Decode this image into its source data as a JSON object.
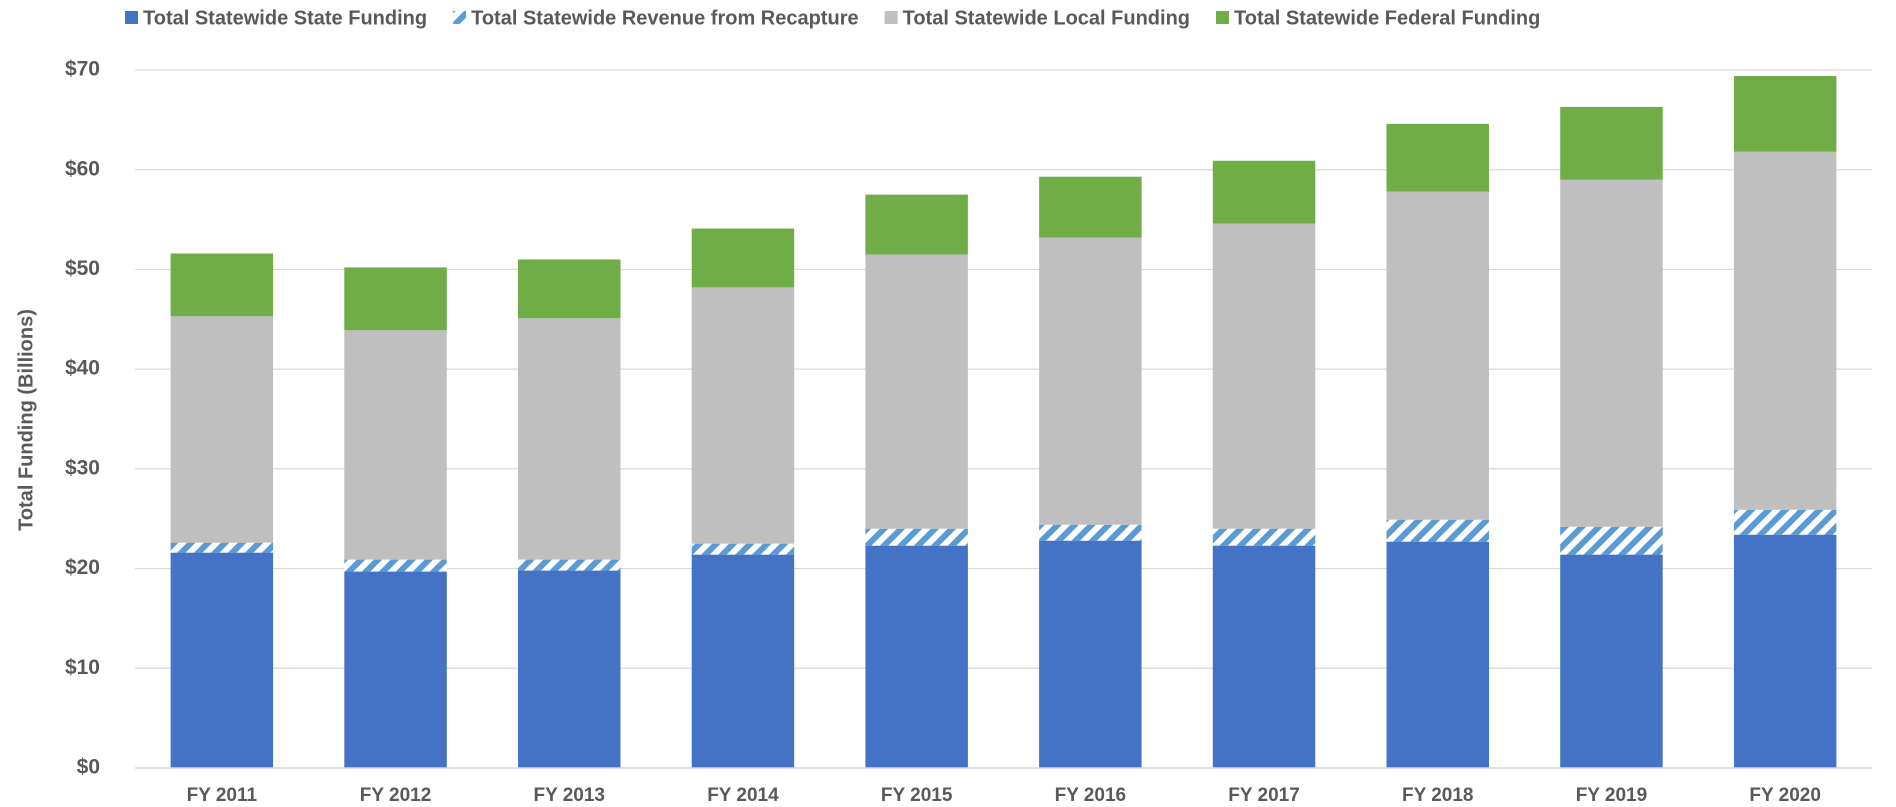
{
  "chart_data": {
    "type": "stacked_bar",
    "y_label": "Total Funding (Billions)",
    "categories": [
      "FY 2011",
      "FY 2012",
      "FY 2013",
      "FY 2014",
      "FY 2015",
      "FY 2016",
      "FY 2017",
      "FY 2018",
      "FY 2019",
      "FY 2020"
    ],
    "series": [
      {
        "name": "Total Statewide State Funding",
        "color": "#4472c4",
        "values": [
          21.6,
          19.7,
          19.8,
          21.4,
          22.3,
          22.8,
          22.3,
          22.7,
          21.4,
          23.4
        ]
      },
      {
        "name": "Total Statewide Revenue from Recapture",
        "color": "#5b9bd5",
        "hatch": true,
        "values": [
          1.0,
          1.2,
          1.1,
          1.1,
          1.7,
          1.6,
          1.7,
          2.2,
          2.8,
          2.5
        ]
      },
      {
        "name": "Total Statewide Local Funding",
        "color": "#bfbfbf",
        "values": [
          22.7,
          23.0,
          24.2,
          25.7,
          27.5,
          28.8,
          30.6,
          32.9,
          34.8,
          35.9
        ]
      },
      {
        "name": "Total Statewide Federal Funding",
        "color": "#70ad47",
        "values": [
          6.3,
          6.3,
          5.9,
          5.9,
          6.0,
          6.1,
          6.3,
          6.8,
          7.3,
          7.6
        ]
      }
    ],
    "ylim": [
      0,
      70
    ],
    "yticks": [
      {
        "value": 0,
        "label": "$0"
      },
      {
        "value": 10,
        "label": "$10"
      },
      {
        "value": 20,
        "label": "$20"
      },
      {
        "value": 30,
        "label": "$30"
      },
      {
        "value": 40,
        "label": "$40"
      },
      {
        "value": 50,
        "label": "$50"
      },
      {
        "value": 60,
        "label": "$60"
      },
      {
        "value": 70,
        "label": "$70"
      }
    ],
    "grid": true,
    "legend": "top"
  }
}
